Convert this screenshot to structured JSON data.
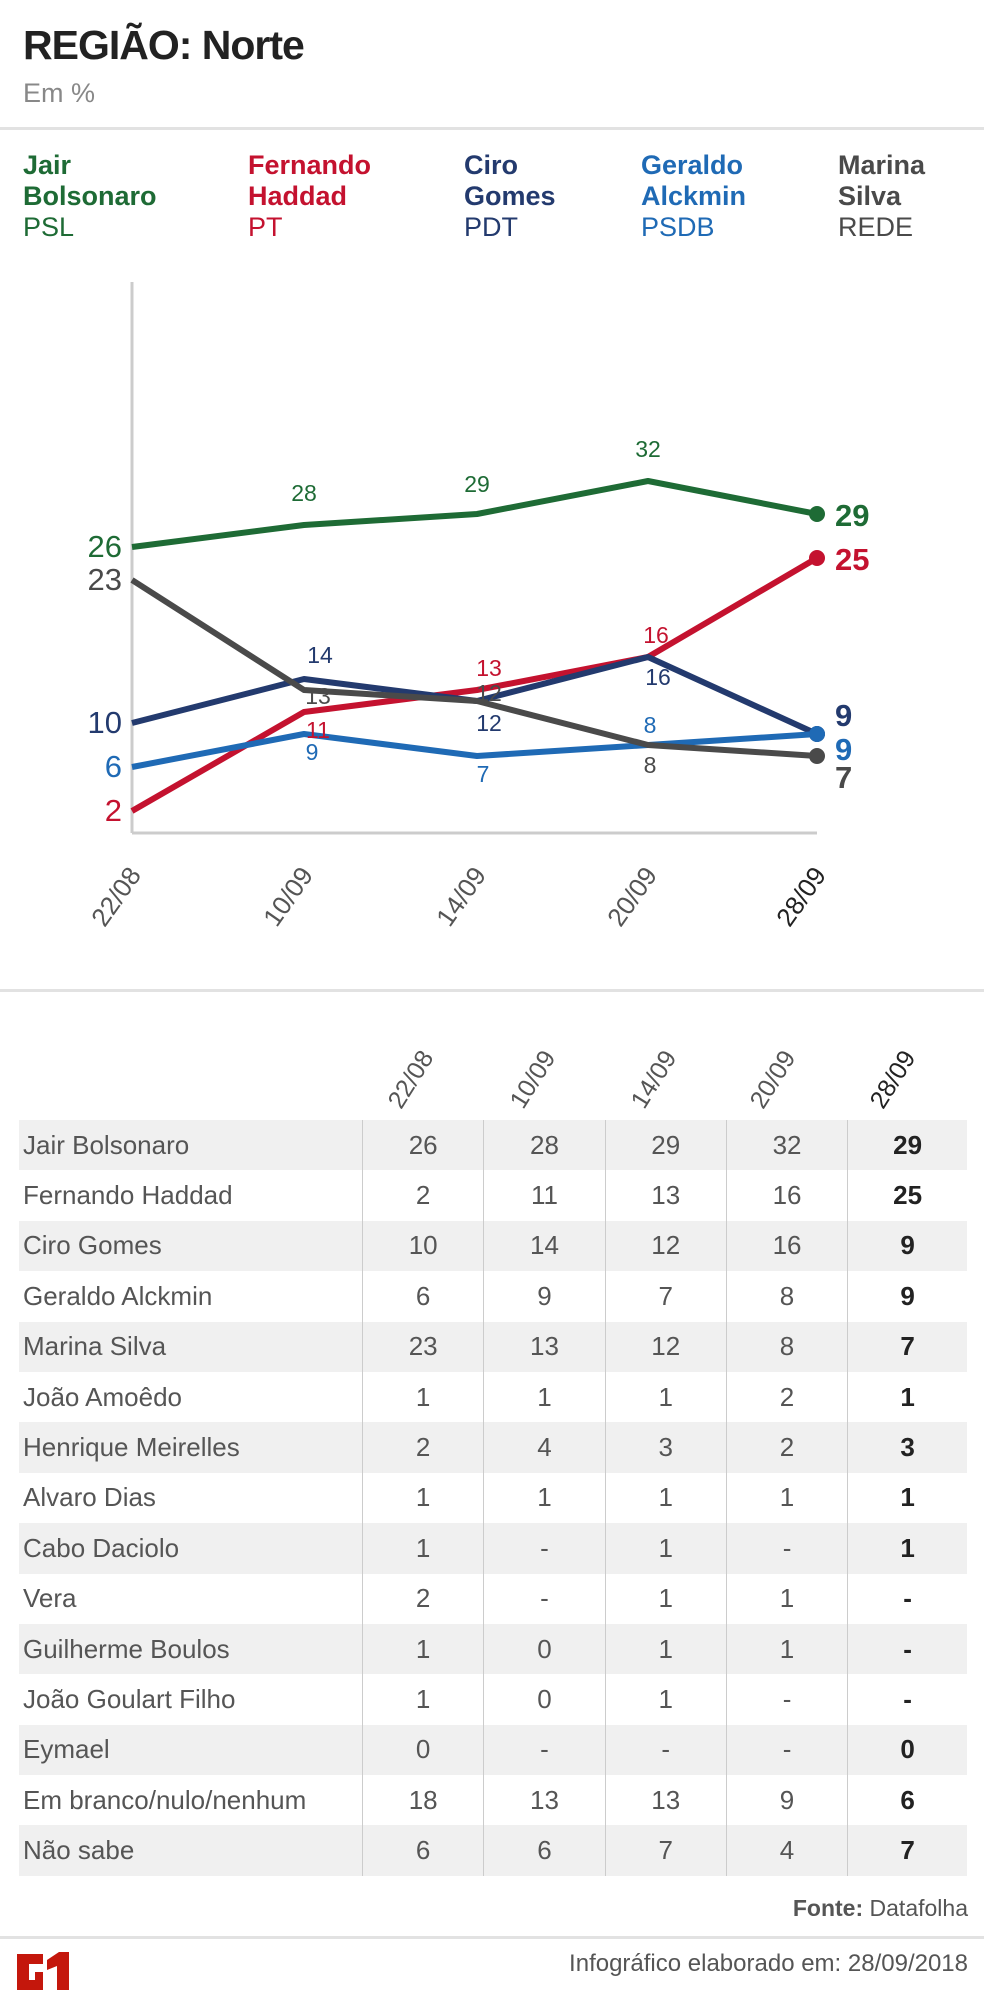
{
  "header": {
    "title": "REGIÃO: Norte",
    "subtitle": "Em %"
  },
  "legend": [
    {
      "first": "Jair",
      "last": "Bolsonaro",
      "party": "PSL",
      "color": "#1e6b35"
    },
    {
      "first": "Fernando",
      "last": "Haddad",
      "party": "PT",
      "color": "#c4122f"
    },
    {
      "first": "Ciro",
      "last": "Gomes",
      "party": "PDT",
      "color": "#233a6e"
    },
    {
      "first": "Geraldo",
      "last": "Alckmin",
      "party": "PSDB",
      "color": "#1f6ab5"
    },
    {
      "first": "Marina",
      "last": "Silva",
      "party": "REDE",
      "color": "#4a4a4a"
    }
  ],
  "chart_data": {
    "type": "line",
    "categories": [
      "22/08",
      "10/09",
      "14/09",
      "20/09",
      "28/09"
    ],
    "grid": false,
    "series": [
      {
        "name": "Jair Bolsonaro",
        "color": "#1e6b35",
        "values": [
          26,
          28,
          29,
          32,
          29
        ]
      },
      {
        "name": "Fernando Haddad",
        "color": "#c4122f",
        "values": [
          2,
          11,
          13,
          16,
          25
        ]
      },
      {
        "name": "Ciro Gomes",
        "color": "#233a6e",
        "values": [
          10,
          14,
          12,
          16,
          9
        ]
      },
      {
        "name": "Geraldo Alckmin",
        "color": "#1f6ab5",
        "values": [
          6,
          9,
          7,
          8,
          9
        ]
      },
      {
        "name": "Marina Silva",
        "color": "#4a4a4a",
        "values": [
          23,
          13,
          12,
          8,
          7
        ]
      }
    ]
  },
  "table": {
    "columns": [
      "22/08",
      "10/09",
      "14/09",
      "20/09",
      "28/09"
    ],
    "rows": [
      {
        "name": "Jair Bolsonaro",
        "values": [
          "26",
          "28",
          "29",
          "32",
          "29"
        ]
      },
      {
        "name": "Fernando Haddad",
        "values": [
          "2",
          "11",
          "13",
          "16",
          "25"
        ]
      },
      {
        "name": "Ciro Gomes",
        "values": [
          "10",
          "14",
          "12",
          "16",
          "9"
        ]
      },
      {
        "name": "Geraldo Alckmin",
        "values": [
          "6",
          "9",
          "7",
          "8",
          "9"
        ]
      },
      {
        "name": "Marina Silva",
        "values": [
          "23",
          "13",
          "12",
          "8",
          "7"
        ]
      },
      {
        "name": "João Amoêdo",
        "values": [
          "1",
          "1",
          "1",
          "2",
          "1"
        ]
      },
      {
        "name": "Henrique Meirelles",
        "values": [
          "2",
          "4",
          "3",
          "2",
          "3"
        ]
      },
      {
        "name": "Alvaro Dias",
        "values": [
          "1",
          "1",
          "1",
          "1",
          "1"
        ]
      },
      {
        "name": "Cabo Daciolo",
        "values": [
          "1",
          "-",
          "1",
          "-",
          "1"
        ]
      },
      {
        "name": "Vera",
        "values": [
          "2",
          "-",
          "1",
          "1",
          "-"
        ]
      },
      {
        "name": "Guilherme Boulos",
        "values": [
          "1",
          "0",
          "1",
          "1",
          "-"
        ]
      },
      {
        "name": "João Goulart Filho",
        "values": [
          "1",
          "0",
          "1",
          "-",
          "-"
        ]
      },
      {
        "name": "Eymael",
        "values": [
          "0",
          "-",
          "-",
          "-",
          "0"
        ]
      },
      {
        "name": "Em branco/nulo/nenhum",
        "values": [
          "18",
          "13",
          "13",
          "9",
          "6"
        ]
      },
      {
        "name": "Não sabe",
        "values": [
          "6",
          "6",
          "7",
          "4",
          "7"
        ]
      }
    ]
  },
  "source": {
    "label": "Fonte:",
    "value": "Datafolha"
  },
  "footer": {
    "text": "Infográfico elaborado em: 28/09/2018",
    "logo": "G1"
  }
}
